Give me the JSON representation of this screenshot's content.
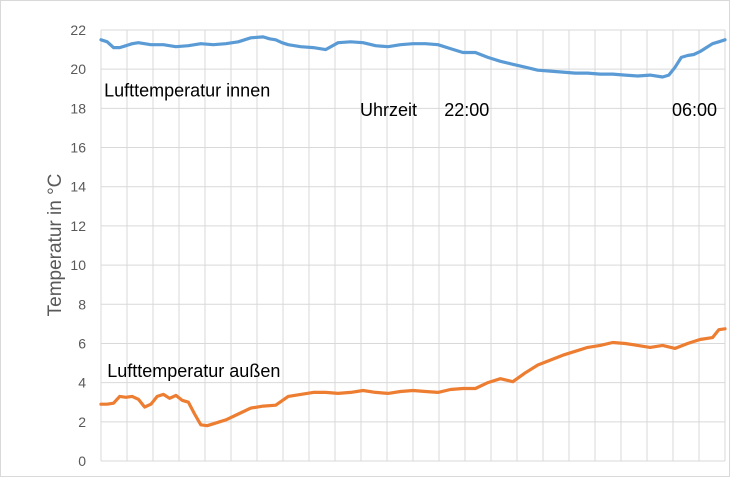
{
  "chart_data": {
    "type": "line",
    "title": "",
    "xlabel": "",
    "ylabel": "Temperatur in °C",
    "ylim": [
      0,
      22
    ],
    "yticks": [
      0,
      2,
      4,
      6,
      8,
      10,
      12,
      14,
      16,
      18,
      20,
      22
    ],
    "xlim": [
      0,
      100
    ],
    "grid": true,
    "legend": "none",
    "annotations": [
      {
        "name": "annotation-inner-label",
        "text": "Lufttemperatur innen",
        "x": 0.5,
        "y": 18.6
      },
      {
        "name": "annotation-outer-label",
        "text": "Lufttemperatur außen",
        "x": 1.0,
        "y": 4.3
      },
      {
        "name": "annotation-time-label",
        "text": "Uhrzeit",
        "x": 41.5,
        "y": 17.6
      },
      {
        "name": "annotation-time-2200",
        "text": "22:00",
        "x": 55.0,
        "y": 17.6
      },
      {
        "name": "annotation-time-0600",
        "text": "06:00",
        "x": 91.5,
        "y": 17.6
      }
    ],
    "series": [
      {
        "name": "Lufttemperatur innen",
        "color": "#5B9BD5",
        "x": [
          0,
          1,
          2,
          3,
          4,
          5,
          6,
          8,
          10,
          12,
          14,
          16,
          18,
          20,
          22,
          24,
          26,
          27,
          28,
          29,
          30,
          32,
          34,
          36,
          38,
          40,
          42,
          44,
          46,
          48,
          50,
          52,
          54,
          56,
          58,
          60,
          62,
          64,
          66,
          68,
          70,
          72,
          74,
          76,
          78,
          80,
          82,
          84,
          86,
          88,
          90,
          91,
          92,
          93,
          94,
          95,
          96,
          97,
          98,
          99,
          100
        ],
        "values": [
          21.5,
          21.4,
          21.1,
          21.1,
          21.2,
          21.3,
          21.35,
          21.25,
          21.25,
          21.15,
          21.2,
          21.3,
          21.25,
          21.3,
          21.4,
          21.6,
          21.65,
          21.55,
          21.5,
          21.35,
          21.25,
          21.15,
          21.1,
          21.0,
          21.35,
          21.4,
          21.35,
          21.2,
          21.15,
          21.25,
          21.3,
          21.3,
          21.25,
          21.05,
          20.85,
          20.85,
          20.6,
          20.4,
          20.25,
          20.1,
          19.95,
          19.9,
          19.85,
          19.8,
          19.8,
          19.75,
          19.75,
          19.7,
          19.65,
          19.7,
          19.6,
          19.7,
          20.1,
          20.6,
          20.7,
          20.75,
          20.9,
          21.1,
          21.3,
          21.4,
          21.5
        ]
      },
      {
        "name": "Lufttemperatur außen",
        "color": "#ED7D31",
        "x": [
          0,
          1,
          2,
          3,
          4,
          5,
          6,
          7,
          8,
          9,
          10,
          11,
          12,
          13,
          14,
          15,
          16,
          17,
          18,
          19,
          20,
          22,
          24,
          26,
          28,
          30,
          32,
          34,
          36,
          38,
          40,
          42,
          44,
          46,
          48,
          50,
          52,
          54,
          56,
          58,
          60,
          62,
          64,
          66,
          68,
          70,
          72,
          74,
          76,
          78,
          80,
          82,
          84,
          86,
          88,
          90,
          92,
          94,
          96,
          98,
          99,
          100
        ],
        "values": [
          2.9,
          2.9,
          2.95,
          3.3,
          3.25,
          3.3,
          3.15,
          2.75,
          2.9,
          3.3,
          3.4,
          3.2,
          3.35,
          3.1,
          3.0,
          2.4,
          1.85,
          1.8,
          1.9,
          2.0,
          2.1,
          2.4,
          2.7,
          2.8,
          2.85,
          3.3,
          3.4,
          3.5,
          3.5,
          3.45,
          3.5,
          3.6,
          3.5,
          3.45,
          3.55,
          3.6,
          3.55,
          3.5,
          3.65,
          3.7,
          3.7,
          4.0,
          4.2,
          4.05,
          4.5,
          4.9,
          5.15,
          5.4,
          5.6,
          5.8,
          5.9,
          6.05,
          6.0,
          5.9,
          5.8,
          5.9,
          5.75,
          6.0,
          6.2,
          6.3,
          6.7,
          6.75
        ]
      }
    ]
  }
}
